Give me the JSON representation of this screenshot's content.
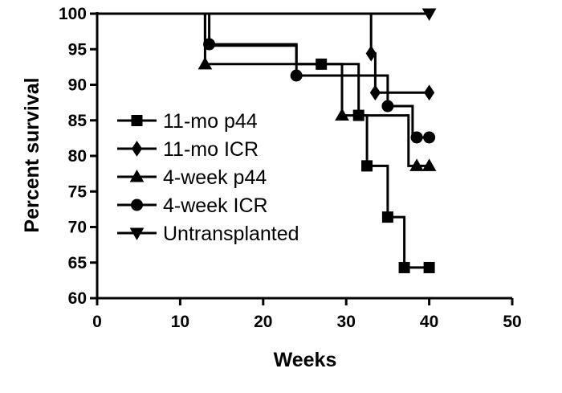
{
  "chart_data": {
    "type": "line",
    "title": "",
    "xlabel": "Weeks",
    "ylabel": "Percent survival",
    "xlim": [
      0,
      50
    ],
    "ylim": [
      60,
      100
    ],
    "xticks": [
      0,
      10,
      20,
      30,
      40,
      50
    ],
    "yticks": [
      60,
      65,
      70,
      75,
      80,
      85,
      90,
      95,
      100
    ],
    "grid": false,
    "legend_position": "left",
    "series": [
      {
        "name": "11-mo p44",
        "marker": "square",
        "steps": [
          [
            0,
            100
          ],
          [
            13,
            100
          ],
          [
            13,
            95.5
          ],
          [
            24,
            95.5
          ],
          [
            24,
            92.9
          ],
          [
            27,
            92.9
          ],
          [
            27,
            92.9
          ],
          [
            31.5,
            92.9
          ],
          [
            31.5,
            85.7
          ],
          [
            32.5,
            85.7
          ],
          [
            32.5,
            78.6
          ],
          [
            35,
            78.6
          ],
          [
            35,
            71.4
          ],
          [
            37,
            71.4
          ],
          [
            37,
            64.3
          ],
          [
            40,
            64.3
          ]
        ],
        "marker_points": [
          [
            27,
            92.9
          ],
          [
            31.5,
            85.7
          ],
          [
            32.5,
            78.6
          ],
          [
            35,
            71.4
          ],
          [
            37,
            64.3
          ],
          [
            40,
            64.3
          ]
        ]
      },
      {
        "name": "11-mo ICR",
        "marker": "diamond",
        "steps": [
          [
            0,
            100
          ],
          [
            33,
            100
          ],
          [
            33,
            94.4
          ],
          [
            33.5,
            94.4
          ],
          [
            33.5,
            88.9
          ],
          [
            40,
            88.9
          ]
        ],
        "marker_points": [
          [
            33,
            94.4
          ],
          [
            33.5,
            88.9
          ],
          [
            40,
            88.9
          ]
        ]
      },
      {
        "name": "4-week p44",
        "marker": "triangle-up",
        "steps": [
          [
            0,
            100
          ],
          [
            13,
            100
          ],
          [
            13,
            92.9
          ],
          [
            29.5,
            92.9
          ],
          [
            29.5,
            85.7
          ],
          [
            37.5,
            85.7
          ],
          [
            37.5,
            78.6
          ],
          [
            40,
            78.6
          ]
        ],
        "marker_points": [
          [
            13,
            92.9
          ],
          [
            29.5,
            85.7
          ],
          [
            38.5,
            78.6
          ],
          [
            40,
            78.6
          ]
        ]
      },
      {
        "name": "4-week ICR",
        "marker": "circle",
        "steps": [
          [
            0,
            100
          ],
          [
            13.5,
            100
          ],
          [
            13.5,
            95.7
          ],
          [
            24,
            95.7
          ],
          [
            24,
            91.3
          ],
          [
            35,
            91.3
          ],
          [
            35,
            87
          ],
          [
            38,
            87
          ],
          [
            38,
            82.6
          ],
          [
            40,
            82.6
          ]
        ],
        "marker_points": [
          [
            13.5,
            95.7
          ],
          [
            24,
            91.3
          ],
          [
            35,
            87
          ],
          [
            38.5,
            82.6
          ],
          [
            40,
            82.6
          ]
        ]
      },
      {
        "name": "Untransplanted",
        "marker": "triangle-down",
        "steps": [
          [
            0,
            100
          ],
          [
            40,
            100
          ]
        ],
        "marker_points": [
          [
            40,
            100
          ]
        ]
      }
    ]
  }
}
